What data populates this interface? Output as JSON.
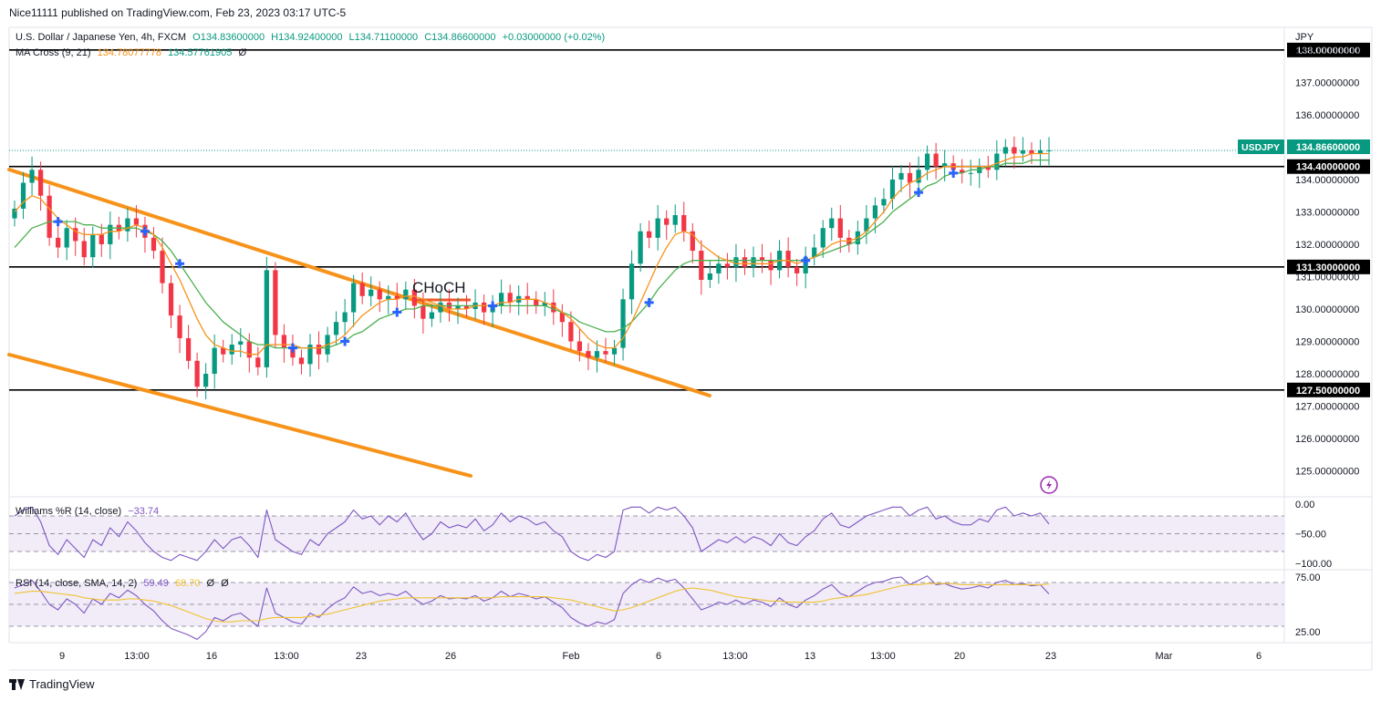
{
  "publisher": "Nice11111 published on TradingView.com, Feb 23, 2023 03:17 UTC-5",
  "main_legend": {
    "symbol": "U.S. Dollar / Japanese Yen, 4h, FXCM",
    "open": "O134.83600000",
    "high": "H134.92400000",
    "low": "L134.71100000",
    "close": "C134.86600000",
    "change": "+0.03000000 (+0.02%)"
  },
  "ma_legend": {
    "name": "MA Cross (9, 21)",
    "fast": "134.78077778",
    "slow": "134.57761905",
    "extra": "Ø"
  },
  "wr_legend": {
    "name": "Williams %R (14, close)",
    "value": "−33.74"
  },
  "rsi_legend": {
    "name": "RSI (14, close, SMA, 14, 2)",
    "rsi": "59.49",
    "sma": "68.70",
    "extra1": "Ø",
    "extra2": "Ø"
  },
  "currency": "JPY",
  "ticker_badge": "USDJPY",
  "price_badge": "134.86600000",
  "footer_brand": "TradingView",
  "annotation": "CHoCH",
  "colors": {
    "up": "#089981",
    "down": "#f23645",
    "ma_fast": "#f7931a",
    "ma_slow": "#4caf50",
    "channel": "#f7931a",
    "wr": "#7e57c2",
    "rsi": "#7e57c2",
    "rsi_sma": "#f0c330",
    "band": "#ede7f6"
  },
  "chart_data": [
    {
      "type": "candlestick",
      "title": "U.S. Dollar / Japanese Yen, 4h, FXCM",
      "ylim": [
        124.2,
        138.7
      ],
      "y_ticks": [
        "125.00000000",
        "126.00000000",
        "127.00000000",
        "128.00000000",
        "129.00000000",
        "130.00000000",
        "131.00000000",
        "132.00000000",
        "133.00000000",
        "134.00000000",
        "135.00000000",
        "136.00000000",
        "137.00000000",
        "138.00000000"
      ],
      "x_ticks": [
        "9",
        "13:00",
        "16",
        "13:00",
        "23",
        "26",
        "Feb",
        "6",
        "13:00",
        "13",
        "13:00",
        "20",
        "23",
        "Mar",
        "6"
      ],
      "series": [
        {
          "name": "Close",
          "values": [
            133.1,
            133.9,
            134.3,
            133.5,
            132.2,
            131.9,
            132.5,
            132.1,
            131.6,
            132.3,
            132.0,
            132.6,
            132.4,
            132.8,
            132.6,
            132.2,
            131.8,
            130.8,
            129.8,
            129.1,
            128.4,
            127.6,
            128.0,
            128.8,
            128.6,
            128.9,
            129.0,
            128.5,
            128.2,
            131.2,
            129.2,
            128.8,
            128.5,
            128.3,
            128.9,
            128.6,
            129.2,
            129.6,
            129.9,
            130.8,
            130.4,
            130.6,
            130.3,
            130.4,
            130.3,
            130.6,
            130.1,
            129.7,
            129.9,
            130.2,
            130.0,
            130.1,
            130.0,
            130.2,
            129.9,
            130.1,
            130.5,
            130.2,
            130.4,
            130.3,
            130.1,
            130.2,
            129.9,
            129.6,
            129.0,
            128.7,
            128.5,
            128.7,
            128.6,
            128.8,
            130.3,
            131.4,
            132.4,
            132.2,
            132.8,
            132.6,
            132.9,
            132.4,
            131.8,
            130.9,
            131.1,
            131.4,
            131.3,
            131.6,
            131.3,
            131.6,
            131.5,
            131.2,
            131.8,
            131.3,
            131.1,
            131.6,
            131.9,
            132.5,
            132.8,
            132.2,
            132.0,
            132.4,
            132.8,
            133.2,
            133.4,
            134.0,
            134.2,
            133.9,
            134.3,
            134.8,
            134.4,
            134.5,
            134.3,
            134.2,
            134.2,
            134.4,
            134.3,
            134.8,
            135.0,
            134.8,
            134.9,
            134.8,
            134.9,
            134.9
          ]
        },
        {
          "name": "MA 9",
          "values": [
            133.0,
            133.3,
            133.5,
            133.4,
            133.1,
            132.8,
            132.6,
            132.4,
            132.3,
            132.3,
            132.3,
            132.4,
            132.4,
            132.5,
            132.6,
            132.5,
            132.3,
            131.9,
            131.4,
            130.9,
            130.3,
            129.7,
            129.2,
            128.9,
            128.8,
            128.7,
            128.7,
            128.6,
            128.6,
            128.9,
            128.9,
            128.9,
            128.9,
            128.8,
            128.8,
            128.8,
            128.9,
            129.0,
            129.2,
            129.5,
            129.8,
            130.0,
            130.2,
            130.3,
            130.3,
            130.4,
            130.4,
            130.3,
            130.2,
            130.1,
            130.0,
            130.0,
            130.0,
            130.1,
            130.1,
            130.1,
            130.2,
            130.2,
            130.3,
            130.3,
            130.3,
            130.2,
            130.1,
            129.9,
            129.7,
            129.4,
            129.1,
            128.9,
            128.8,
            128.8,
            129.1,
            129.6,
            130.2,
            130.8,
            131.4,
            131.9,
            132.3,
            132.4,
            132.3,
            132.0,
            131.8,
            131.6,
            131.5,
            131.4,
            131.4,
            131.4,
            131.4,
            131.4,
            131.5,
            131.5,
            131.4,
            131.5,
            131.6,
            131.8,
            132.0,
            132.1,
            132.1,
            132.2,
            132.4,
            132.7,
            133.0,
            133.4,
            133.7,
            133.9,
            134.0,
            134.2,
            134.3,
            134.4,
            134.4,
            134.4,
            134.4,
            134.4,
            134.4,
            134.5,
            134.6,
            134.7,
            134.7,
            134.8,
            134.8,
            134.8
          ]
        },
        {
          "name": "MA 21",
          "values": [
            131.9,
            132.2,
            132.5,
            132.6,
            132.7,
            132.7,
            132.7,
            132.7,
            132.6,
            132.6,
            132.5,
            132.5,
            132.5,
            132.5,
            132.5,
            132.4,
            132.3,
            132.1,
            131.8,
            131.4,
            131.0,
            130.6,
            130.2,
            129.9,
            129.6,
            129.4,
            129.2,
            129.0,
            128.9,
            128.9,
            128.8,
            128.8,
            128.8,
            128.8,
            128.8,
            128.8,
            128.8,
            128.9,
            129.0,
            129.2,
            129.3,
            129.5,
            129.7,
            129.8,
            129.9,
            130.0,
            130.0,
            130.1,
            130.1,
            130.1,
            130.1,
            130.1,
            130.1,
            130.1,
            130.1,
            130.1,
            130.1,
            130.1,
            130.1,
            130.1,
            130.1,
            130.1,
            130.0,
            129.9,
            129.8,
            129.6,
            129.5,
            129.4,
            129.3,
            129.3,
            129.4,
            129.6,
            129.9,
            130.2,
            130.6,
            130.9,
            131.2,
            131.4,
            131.5,
            131.5,
            131.5,
            131.5,
            131.5,
            131.5,
            131.5,
            131.5,
            131.5,
            131.5,
            131.5,
            131.5,
            131.5,
            131.5,
            131.6,
            131.7,
            131.8,
            131.9,
            132.0,
            132.1,
            132.3,
            132.5,
            132.7,
            133.0,
            133.2,
            133.4,
            133.6,
            133.8,
            133.9,
            134.1,
            134.2,
            134.2,
            134.3,
            134.3,
            134.4,
            134.4,
            134.5,
            134.5,
            134.5,
            134.6,
            134.6,
            134.6
          ]
        }
      ],
      "horizontal_levels": [
        "138.00000000",
        "134.40000000",
        "131.30000000",
        "127.50000000"
      ]
    },
    {
      "type": "line",
      "title": "Williams %R (14, close)",
      "ylim": [
        -110,
        5
      ],
      "y_ticks": [
        "0.00",
        "−50.00",
        "−100.00"
      ],
      "series": [
        {
          "name": "Williams %R",
          "values": [
            -20,
            -10,
            -5,
            -30,
            -70,
            -85,
            -60,
            -75,
            -90,
            -60,
            -70,
            -40,
            -55,
            -30,
            -45,
            -65,
            -80,
            -90,
            -95,
            -85,
            -90,
            -95,
            -80,
            -60,
            -75,
            -60,
            -55,
            -70,
            -90,
            -10,
            -60,
            -70,
            -80,
            -85,
            -60,
            -70,
            -50,
            -40,
            -30,
            -10,
            -25,
            -20,
            -35,
            -20,
            -30,
            -15,
            -40,
            -60,
            -50,
            -30,
            -40,
            -35,
            -40,
            -25,
            -45,
            -35,
            -15,
            -30,
            -20,
            -25,
            -35,
            -30,
            -45,
            -55,
            -80,
            -90,
            -95,
            -85,
            -90,
            -80,
            -10,
            -5,
            -5,
            -15,
            -5,
            -10,
            -5,
            -20,
            -40,
            -80,
            -70,
            -60,
            -65,
            -55,
            -65,
            -55,
            -60,
            -70,
            -50,
            -65,
            -70,
            -55,
            -45,
            -25,
            -15,
            -35,
            -40,
            -30,
            -20,
            -15,
            -10,
            -5,
            -5,
            -20,
            -10,
            -5,
            -25,
            -20,
            -30,
            -35,
            -35,
            -25,
            -30,
            -10,
            -5,
            -20,
            -15,
            -20,
            -15,
            -33.74
          ]
        }
      ],
      "levels": [
        -20,
        -50,
        -80
      ]
    },
    {
      "type": "line",
      "title": "RSI (14, close, SMA, 14, 2)",
      "ylim": [
        15,
        85
      ],
      "y_ticks": [
        "75.00",
        "25.00"
      ],
      "series": [
        {
          "name": "RSI",
          "values": [
            65,
            68,
            72,
            62,
            50,
            45,
            55,
            50,
            42,
            55,
            50,
            60,
            56,
            63,
            58,
            50,
            44,
            35,
            28,
            25,
            22,
            18,
            25,
            38,
            35,
            40,
            42,
            36,
            30,
            65,
            42,
            38,
            34,
            32,
            42,
            38,
            46,
            52,
            56,
            66,
            60,
            62,
            58,
            60,
            58,
            62,
            55,
            50,
            53,
            58,
            55,
            56,
            55,
            58,
            53,
            56,
            62,
            57,
            60,
            58,
            55,
            57,
            52,
            47,
            38,
            33,
            30,
            34,
            32,
            36,
            60,
            68,
            73,
            70,
            74,
            71,
            73,
            65,
            55,
            45,
            48,
            52,
            50,
            54,
            50,
            54,
            52,
            48,
            56,
            50,
            47,
            54,
            58,
            64,
            68,
            60,
            57,
            62,
            67,
            70,
            71,
            74,
            75,
            68,
            72,
            76,
            68,
            69,
            66,
            64,
            65,
            67,
            65,
            70,
            72,
            68,
            69,
            67,
            68,
            59.49
          ]
        },
        {
          "name": "SMA",
          "values": [
            60,
            61,
            62,
            62,
            61,
            60,
            59,
            58,
            56,
            55,
            54,
            54,
            54,
            55,
            55,
            54,
            53,
            51,
            49,
            46,
            43,
            40,
            37,
            35,
            34,
            34,
            35,
            35,
            35,
            37,
            38,
            38,
            38,
            38,
            39,
            40,
            41,
            43,
            45,
            47,
            49,
            51,
            53,
            54,
            55,
            56,
            56,
            56,
            56,
            56,
            56,
            56,
            56,
            56,
            56,
            56,
            57,
            57,
            57,
            57,
            57,
            57,
            56,
            55,
            54,
            52,
            50,
            48,
            46,
            44,
            45,
            47,
            50,
            53,
            56,
            59,
            62,
            64,
            65,
            64,
            63,
            61,
            59,
            57,
            56,
            55,
            54,
            53,
            53,
            52,
            52,
            52,
            52,
            53,
            55,
            56,
            57,
            58,
            59,
            61,
            63,
            65,
            67,
            68,
            68,
            69,
            69,
            69,
            69,
            68,
            68,
            68,
            68,
            68,
            68,
            68,
            68,
            68,
            68,
            68.7
          ]
        }
      ],
      "levels": [
        70,
        50,
        30
      ]
    }
  ]
}
